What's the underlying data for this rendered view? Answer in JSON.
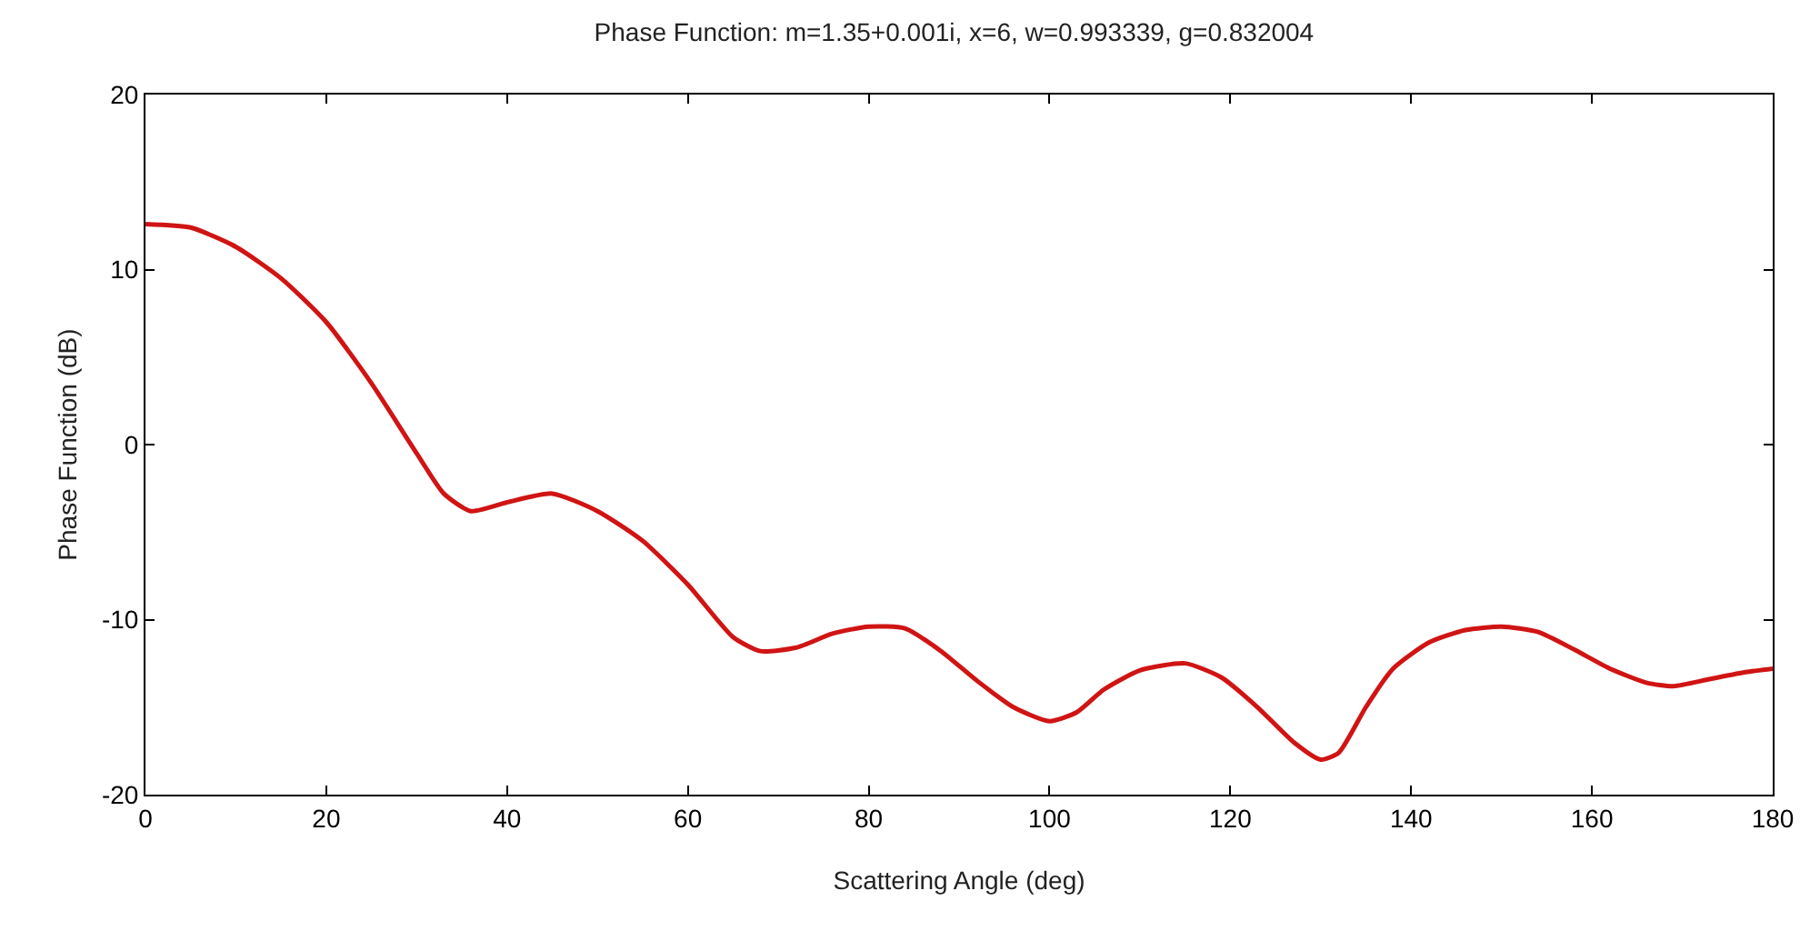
{
  "chart_data": {
    "type": "line",
    "title": "Phase Function: m=1.35+0.001i, x=6, w=0.993339, g=0.832004",
    "xlabel": "Scattering Angle (deg)",
    "ylabel": "Phase Function (dB)",
    "x": [
      0,
      5,
      10,
      15,
      20,
      25,
      30,
      33,
      36,
      40,
      45,
      50,
      55,
      60,
      65,
      68,
      72,
      76,
      80,
      84,
      88,
      92,
      96,
      100,
      103,
      106,
      110,
      115,
      119,
      123,
      127,
      130,
      132,
      135,
      138,
      142,
      146,
      150,
      154,
      158,
      162,
      166,
      169,
      173,
      177,
      180
    ],
    "series": [
      {
        "color": "#d01414",
        "values": [
          12.6,
          12.4,
          11.3,
          9.5,
          7,
          3.5,
          -0.5,
          -2.8,
          -3.8,
          -3.3,
          -2.8,
          -3.8,
          -5.5,
          -8,
          -11,
          -11.8,
          -11.6,
          -10.8,
          -10.4,
          -10.5,
          -11.8,
          -13.5,
          -15,
          -15.8,
          -15.3,
          -14,
          -12.9,
          -12.5,
          -13.3,
          -15,
          -17,
          -18,
          -17.6,
          -15,
          -12.8,
          -11.3,
          -10.6,
          -10.4,
          -10.7,
          -11.7,
          -12.8,
          -13.6,
          -13.8,
          -13.4,
          -13,
          -12.8
        ]
      }
    ],
    "xlim": [
      0,
      180
    ],
    "xticks": [
      0,
      20,
      40,
      60,
      80,
      100,
      120,
      140,
      160,
      180
    ],
    "ylim": [
      -20,
      20
    ],
    "yticks": [
      -20,
      -10,
      0,
      10,
      20
    ],
    "grid": false,
    "line_style": "solid",
    "marker": "none"
  }
}
